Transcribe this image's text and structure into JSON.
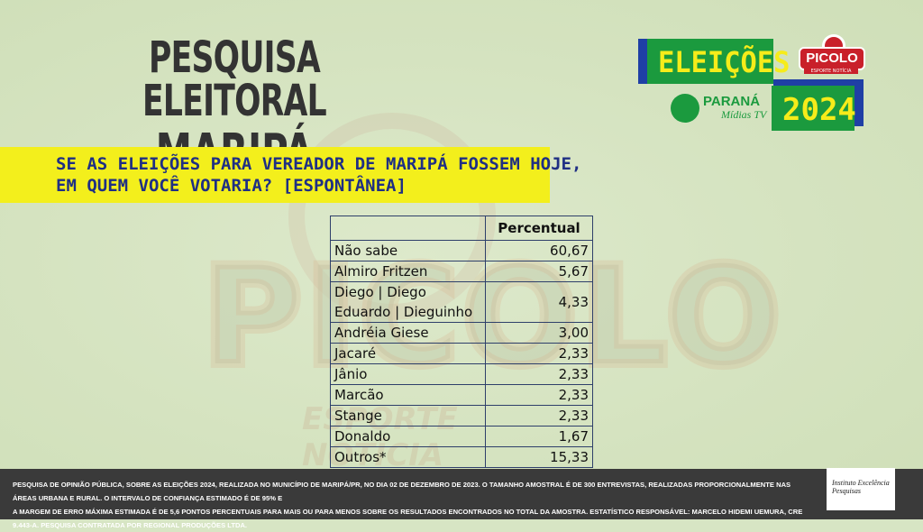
{
  "title": {
    "line1": "PESQUISA ELEITORAL",
    "line2": "MARIPÁ"
  },
  "question": {
    "line1": "SE AS ELEIÇÕES PARA VEREADOR DE MARIPÁ FOSSEM HOJE,",
    "line2": "EM QUEM VOCÊ VOTARIA? [ESPONTÂNEA]"
  },
  "logo": {
    "eleicoes": "ELEIÇÕES",
    "year": "2024",
    "picolo": "PICOLO",
    "picolo_sub": "ESPORTE NOTÍCIA",
    "parana": "PARANÁ",
    "parana_sub": "Mídias TV"
  },
  "table": {
    "header": "Percentual",
    "rows": [
      {
        "name": "Não sabe",
        "value": "60,67"
      },
      {
        "name": "Almiro Fritzen",
        "value": "5,67"
      },
      {
        "name": "Diego | Diego Eduardo | Dieguinho",
        "value": "4,33"
      },
      {
        "name": "Andréia Giese",
        "value": "3,00"
      },
      {
        "name": "Jacaré",
        "value": "2,33"
      },
      {
        "name": "Jânio",
        "value": "2,33"
      },
      {
        "name": "Marcão",
        "value": "2,33"
      },
      {
        "name": "Stange",
        "value": "2,33"
      },
      {
        "name": "Donaldo",
        "value": "1,67"
      },
      {
        "name": "Outros*",
        "value": "15,33"
      }
    ]
  },
  "footer": {
    "line1": "PESQUISA DE OPINIÃO PÚBLICA, SOBRE AS ELEIÇÕES 2024, REALIZADA NO MUNICÍPIO DE MARIPÁ/PR, NO DIA 02 DE DEZEMBRO DE 2023. O TAMANHO AMOSTRAL É DE 300 ENTREVISTAS, REALIZADAS PROPORCIONALMENTE NAS ÁREAS URBANA E RURAL. O INTERVALO DE CONFIANÇA ESTIMADO É DE 95% E",
    "line2": "A MARGEM DE ERRO MÁXIMA ESTIMADA É DE 5,6 PONTOS PERCENTUAIS PARA MAIS OU PARA MENOS SOBRE OS RESULTADOS ENCONTRADOS NO TOTAL DA AMOSTRA. ESTATÍSTICO RESPONSÁVEL: MARCELO HIDEMI UEMURA, CRE 9.443-A.  PESQUISA CONTRATADA POR REGIONAL PRODUÇÕES LTDA.",
    "institute_logo": "Instituto Excelência Pesquisas"
  },
  "watermark": {
    "main": "PICOLO",
    "sub": "ESPORTE NOTÍCIA"
  },
  "colors": {
    "yellow": "#f3ef1c",
    "navy": "#1f2f84",
    "green": "#1b9a3e",
    "blue": "#1f3fa5",
    "red": "#c9202a"
  }
}
